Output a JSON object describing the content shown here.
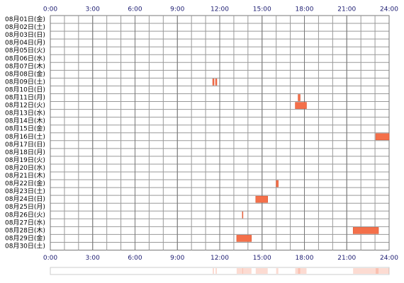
{
  "chart_data": {
    "type": "timeline",
    "categories": [
      "08月01日(金)",
      "08月02日(土)",
      "08月03日(日)",
      "08月04日(月)",
      "08月05日(火)",
      "08月06日(水)",
      "08月07日(木)",
      "08月08日(金)",
      "08月09日(土)",
      "08月10日(日)",
      "08月11日(月)",
      "08月12日(火)",
      "08月13日(水)",
      "08月14日(木)",
      "08月15日(金)",
      "08月16日(土)",
      "08月17日(日)",
      "08月18日(月)",
      "08月19日(火)",
      "08月20日(水)",
      "08月21日(木)",
      "08月22日(金)",
      "08月23日(土)",
      "08月24日(日)",
      "08月25日(月)",
      "08月26日(火)",
      "08月27日(水)",
      "08月28日(木)",
      "08月29日(金)",
      "08月30日(土)"
    ],
    "intervals": [
      [],
      [],
      [],
      [],
      [],
      [],
      [],
      [],
      [
        [
          11.5,
          11.6
        ],
        [
          11.7,
          11.8
        ]
      ],
      [],
      [
        [
          17.55,
          17.7
        ]
      ],
      [
        [
          17.35,
          18.15
        ]
      ],
      [],
      [],
      [],
      [
        [
          23.05,
          24
        ]
      ],
      [],
      [],
      [],
      [],
      [],
      [
        [
          16.0,
          16.15
        ]
      ],
      [],
      [
        [
          14.55,
          15.4
        ]
      ],
      [],
      [
        [
          13.6,
          13.65
        ]
      ],
      [],
      [
        [
          21.45,
          23.25
        ]
      ],
      [
        [
          13.2,
          14.25
        ]
      ],
      []
    ],
    "color": "#f4704a",
    "xlim": [
      0,
      24
    ],
    "xticks": [
      {
        "value": 0,
        "label": "0:00"
      },
      {
        "value": 3,
        "label": "3:00"
      },
      {
        "value": 6,
        "label": "6:00"
      },
      {
        "value": 9,
        "label": "9:00"
      },
      {
        "value": 12,
        "label": "12:00"
      },
      {
        "value": 15,
        "label": "15:00"
      },
      {
        "value": 18,
        "label": "18:00"
      },
      {
        "value": 21,
        "label": "21:00"
      },
      {
        "value": 24,
        "label": "24:00"
      }
    ]
  }
}
